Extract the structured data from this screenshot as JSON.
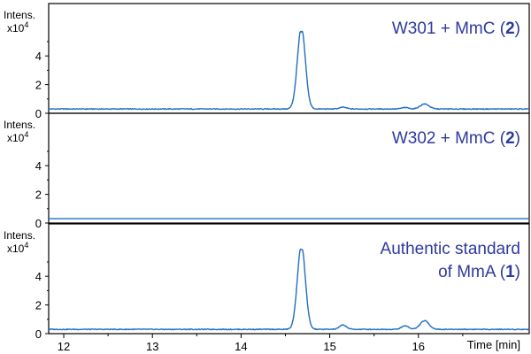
{
  "chart_data": {
    "type": "line",
    "title": "",
    "xlabel": "Time [min]",
    "xlim": [
      11.83,
      17.25
    ],
    "x_ticks": [
      "12",
      "13",
      "14",
      "15",
      "16"
    ],
    "legend": "none",
    "grid": false,
    "line_color": "#1f6fbf",
    "label_color": "#2e3a9e",
    "panels": [
      {
        "ylabel": "Intens.",
        "yscale_label": "x10",
        "yscale_exponent": "4",
        "y_ticks": [
          "0",
          "2",
          "4"
        ],
        "ylim": [
          0,
          6.5
        ],
        "annotation": [
          "W301 + MmC (2)"
        ],
        "annotation_parts": [
          [
            {
              "t": "W301 + MmC (",
              "b": false
            },
            {
              "t": "2",
              "b": true
            },
            {
              "t": ")",
              "b": false
            }
          ]
        ],
        "baseline": 0.3,
        "peaks": [
          {
            "center": 14.68,
            "height": 5.7,
            "width": 0.045,
            "split": true
          },
          {
            "center": 15.15,
            "height": 0.12,
            "width": 0.04
          },
          {
            "center": 15.85,
            "height": 0.1,
            "width": 0.04
          },
          {
            "center": 16.07,
            "height": 0.35,
            "width": 0.05
          }
        ]
      },
      {
        "ylabel": "Intens.",
        "yscale_label": "x10",
        "yscale_exponent": "4",
        "y_ticks": [
          "0",
          "2",
          "4"
        ],
        "ylim": [
          0,
          6.5
        ],
        "annotation": [
          "W302 + MmC (2)"
        ],
        "annotation_parts": [
          [
            {
              "t": "W302 + MmC (",
              "b": false
            },
            {
              "t": "2",
              "b": true
            },
            {
              "t": ")",
              "b": false
            }
          ]
        ],
        "baseline": 0.3,
        "peaks": []
      },
      {
        "ylabel": "Intens.",
        "yscale_label": "x10",
        "yscale_exponent": "4",
        "y_ticks": [
          "0",
          "2",
          "4"
        ],
        "ylim": [
          0,
          6.5
        ],
        "annotation": [
          "Authentic standard",
          "of MmA (1)"
        ],
        "annotation_parts": [
          [
            {
              "t": "Authentic standard",
              "b": false
            }
          ],
          [
            {
              "t": "of MmA (",
              "b": false
            },
            {
              "t": "1",
              "b": true
            },
            {
              "t": ")",
              "b": false
            }
          ]
        ],
        "baseline": 0.3,
        "peaks": [
          {
            "center": 14.68,
            "height": 5.9,
            "width": 0.045,
            "split": true
          },
          {
            "center": 15.15,
            "height": 0.3,
            "width": 0.04
          },
          {
            "center": 15.85,
            "height": 0.25,
            "width": 0.04
          },
          {
            "center": 16.07,
            "height": 0.6,
            "width": 0.05
          }
        ]
      }
    ]
  }
}
